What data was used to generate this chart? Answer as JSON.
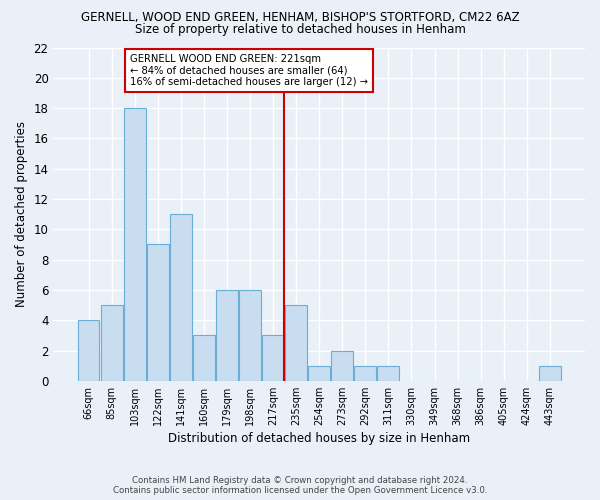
{
  "title1": "GERNELL, WOOD END GREEN, HENHAM, BISHOP'S STORTFORD, CM22 6AZ",
  "title2": "Size of property relative to detached houses in Henham",
  "xlabel": "Distribution of detached houses by size in Henham",
  "ylabel": "Number of detached properties",
  "bar_labels": [
    "66sqm",
    "85sqm",
    "103sqm",
    "122sqm",
    "141sqm",
    "160sqm",
    "179sqm",
    "198sqm",
    "217sqm",
    "235sqm",
    "254sqm",
    "273sqm",
    "292sqm",
    "311sqm",
    "330sqm",
    "349sqm",
    "368sqm",
    "386sqm",
    "405sqm",
    "424sqm",
    "443sqm"
  ],
  "bar_values": [
    4,
    5,
    18,
    9,
    11,
    3,
    6,
    6,
    3,
    5,
    1,
    2,
    1,
    1,
    0,
    0,
    0,
    0,
    0,
    0,
    1
  ],
  "bar_color": "#c9ddf0",
  "bar_edge_color": "#6aaed6",
  "vline_index": 8,
  "vline_color": "#cc0000",
  "ylim": [
    0,
    22
  ],
  "yticks": [
    0,
    2,
    4,
    6,
    8,
    10,
    12,
    14,
    16,
    18,
    20,
    22
  ],
  "annotation_title": "GERNELL WOOD END GREEN: 221sqm",
  "annotation_line1": "← 84% of detached houses are smaller (64)",
  "annotation_line2": "16% of semi-detached houses are larger (12) →",
  "annotation_box_color": "#ffffff",
  "annotation_edge_color": "#cc0000",
  "footer1": "Contains HM Land Registry data © Crown copyright and database right 2024.",
  "footer2": "Contains public sector information licensed under the Open Government Licence v3.0.",
  "bg_color": "#eaf0f8",
  "plot_bg_color": "#eaf0f8",
  "grid_color": "#ffffff"
}
